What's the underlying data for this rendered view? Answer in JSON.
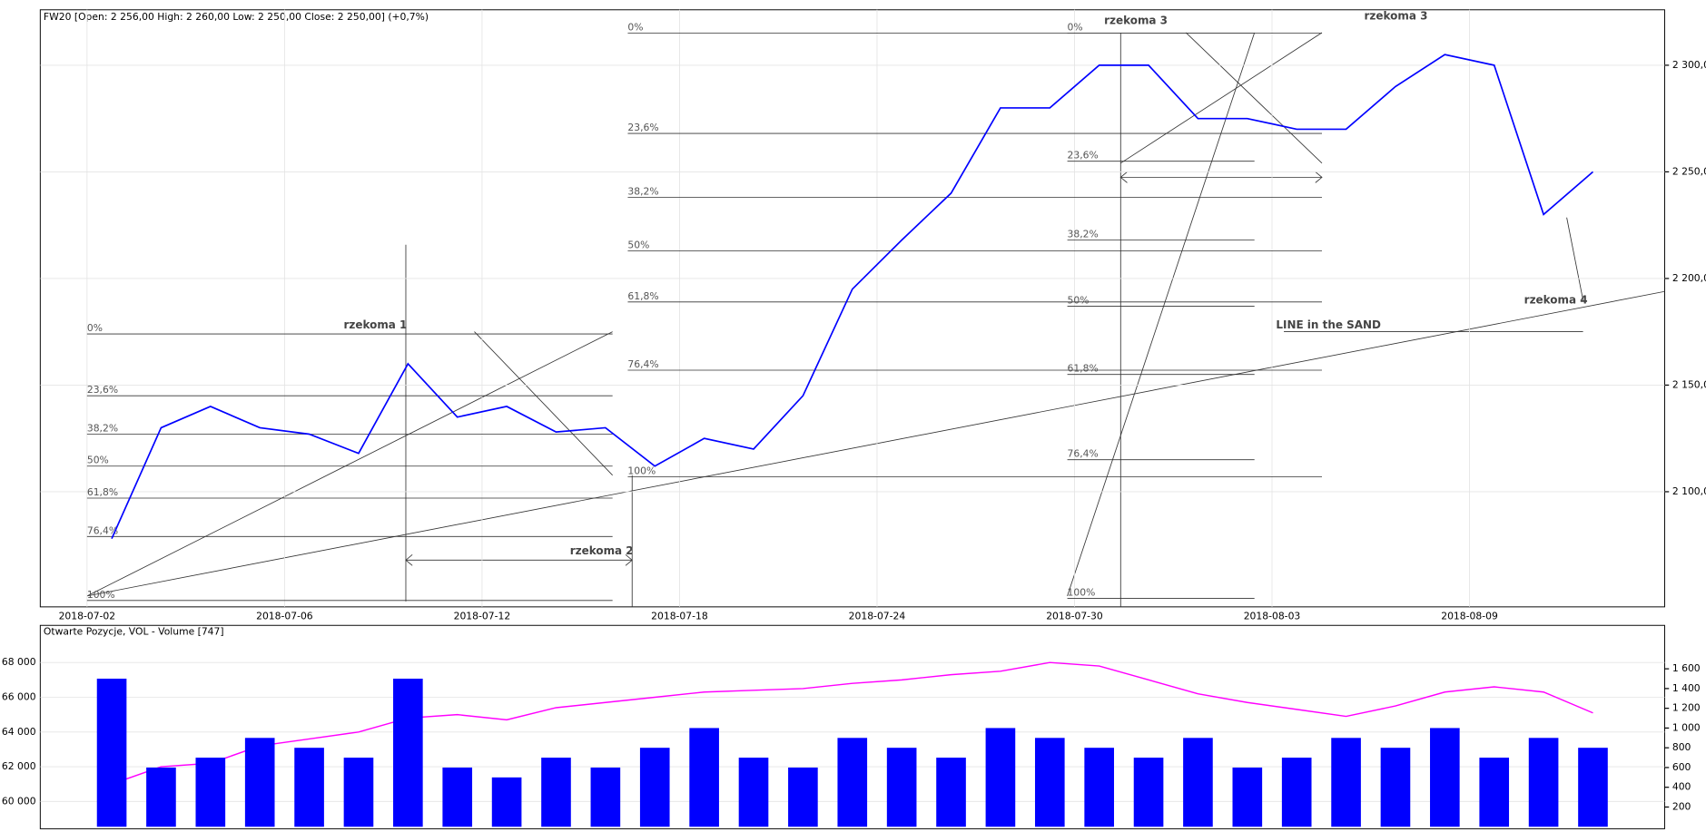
{
  "chart_data": [
    {
      "type": "line",
      "title": "FW20 [Open: 2 256,00  High: 2 260,00  Low: 2 250,00  Close: 2 250,00] (+0,7%)",
      "categories": [
        "2018-07-02",
        null,
        null,
        null,
        "2018-07-06",
        null,
        null,
        null,
        "2018-07-12",
        null,
        null,
        null,
        "2018-07-18",
        null,
        null,
        null,
        "2018-07-24",
        null,
        null,
        null,
        "2018-07-30",
        null,
        null,
        null,
        "2018-08-03",
        null,
        null,
        null,
        "2018-08-09",
        null,
        null
      ],
      "values": [
        2078,
        2130,
        2140,
        2130,
        2127,
        2118,
        2160,
        2135,
        2140,
        2128,
        2130,
        2112,
        2125,
        2120,
        2145,
        2195,
        2218,
        2240,
        2280,
        2280,
        2300,
        2300,
        2275,
        2275,
        2270,
        2270,
        2290,
        2305,
        2300,
        2230,
        2250
      ],
      "color": "#0000ff",
      "ylim": [
        2046,
        2326
      ],
      "yticks": [
        {
          "value": 2100,
          "label": "2 100,0"
        },
        {
          "value": 2150,
          "label": "2 150,0"
        },
        {
          "value": 2200,
          "label": "2 200,0"
        },
        {
          "value": 2250,
          "label": "2 250,0"
        },
        {
          "value": 2300,
          "label": "2 300,0"
        }
      ],
      "grid": true,
      "fibonacci": [
        [
          {
            "label": "0%",
            "value": 2174
          },
          {
            "label": "23,6%",
            "value": 2145
          },
          {
            "label": "38,2%",
            "value": 2127
          },
          {
            "label": "50%",
            "value": 2112
          },
          {
            "label": "61,8%",
            "value": 2097
          },
          {
            "label": "76,4%",
            "value": 2079
          },
          {
            "label": "100%",
            "value": 2049
          }
        ],
        [
          {
            "label": "0%",
            "value": 2315
          },
          {
            "label": "23,6%",
            "value": 2268
          },
          {
            "label": "38,2%",
            "value": 2238
          },
          {
            "label": "50%",
            "value": 2213
          },
          {
            "label": "61,8%",
            "value": 2189
          },
          {
            "label": "76,4%",
            "value": 2157
          },
          {
            "label": "100%",
            "value": 2107
          }
        ],
        [
          {
            "label": "0%",
            "value": 2315
          },
          {
            "label": "23,6%",
            "value": 2255
          },
          {
            "label": "38,2%",
            "value": 2218
          },
          {
            "label": "50%",
            "value": 2187
          },
          {
            "label": "61,8%",
            "value": 2155
          },
          {
            "label": "76,4%",
            "value": 2115
          },
          {
            "label": "100%",
            "value": 2050
          }
        ]
      ],
      "annotations": [
        "rzekoma 1",
        "rzekoma 2",
        "rzekoma 3",
        "rzekoma 3",
        "rzekoma 4",
        "LINE in the SAND"
      ]
    },
    {
      "type": "combo",
      "title": "Otwarte Pozycje, VOL - Volume [747]",
      "series": [
        {
          "type": "line",
          "color": "#ff00ff",
          "values": [
            61000,
            62000,
            62200,
            63200,
            63600,
            64000,
            64800,
            65000,
            64700,
            65400,
            65700,
            66000,
            66300,
            66400,
            66500,
            66800,
            67000,
            67300,
            67500,
            68000,
            67800,
            67000,
            66200,
            65700,
            65300,
            64900,
            65500,
            66300,
            66600,
            66300,
            65100
          ]
        },
        {
          "type": "bar",
          "color": "#0000ff",
          "axis": "y2",
          "values": [
            1500,
            600,
            700,
            900,
            800,
            700,
            1500,
            600,
            500,
            700,
            600,
            800,
            1000,
            700,
            600,
            900,
            800,
            700,
            1000,
            900,
            800,
            700,
            900,
            600,
            700,
            900,
            800,
            1000,
            700,
            900,
            800
          ]
        }
      ],
      "ylim": [
        58430,
        70140
      ],
      "yticks": [
        {
          "value": 60000,
          "label": "60 000"
        },
        {
          "value": 62000,
          "label": "62 000"
        },
        {
          "value": 64000,
          "label": "64 000"
        },
        {
          "value": 66000,
          "label": "66 000"
        },
        {
          "value": 68000,
          "label": "68 000"
        }
      ],
      "y2lim": [
        -20,
        2040
      ],
      "y2ticks": [
        200,
        400,
        600,
        800,
        {
          "value": 1000,
          "label": "1 000"
        },
        {
          "value": 1200,
          "label": "1 200"
        },
        {
          "value": 1400,
          "label": "1 400"
        },
        {
          "value": 1600,
          "label": "1 600"
        }
      ],
      "grid": true
    }
  ]
}
